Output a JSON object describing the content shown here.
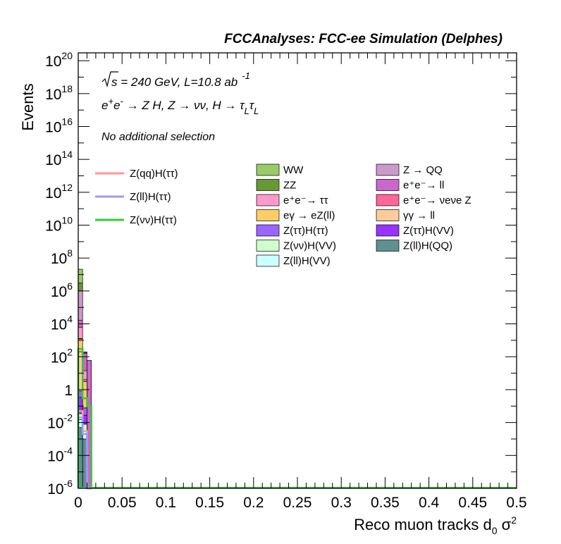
{
  "header": {
    "title": "FCCAnalyses: FCC-ee Simulation (Delphes)"
  },
  "annotations": {
    "energy_line": "√s = 240 GeV, L=10.8 ab⁻¹",
    "energy_pre": "s = 240 GeV, L=10.8 ab",
    "energy_exp": "-1",
    "process_line": "e⁺e⁻ → Z H, Z → νν, H → τLτL",
    "selection_line": "No additional selection"
  },
  "chart_data": {
    "type": "bar",
    "title": "FCCAnalyses: FCC-ee Simulation (Delphes)",
    "xlabel": "Reco muon tracks d0 σ²",
    "ylabel": "Events",
    "xlim": [
      0,
      0.5
    ],
    "ylim": [
      1e-06,
      3e+20
    ],
    "yscale": "log",
    "bin_width": 0.005,
    "x_ticks": [
      "0",
      "0.05",
      "0.1",
      "0.15",
      "0.2",
      "0.25",
      "0.3",
      "0.35",
      "0.4",
      "0.45",
      "0.5"
    ],
    "x_tick_values": [
      0,
      0.05,
      0.1,
      0.15,
      0.2,
      0.25,
      0.3,
      0.35,
      0.4,
      0.45,
      0.5
    ],
    "y_ticks": [
      {
        "value": 1e-06,
        "base": "10",
        "exp": "-6"
      },
      {
        "value": 0.0001,
        "base": "10",
        "exp": "-4"
      },
      {
        "value": 0.01,
        "base": "10",
        "exp": "-2"
      },
      {
        "value": 1,
        "base": "1",
        "exp": ""
      },
      {
        "value": 100.0,
        "base": "10",
        "exp": "2"
      },
      {
        "value": 10000.0,
        "base": "10",
        "exp": "4"
      },
      {
        "value": 1000000.0,
        "base": "10",
        "exp": "6"
      },
      {
        "value": 100000000.0,
        "base": "10",
        "exp": "8"
      },
      {
        "value": 10000000000.0,
        "base": "10",
        "exp": "10"
      },
      {
        "value": 1000000000000.0,
        "base": "10",
        "exp": "12"
      },
      {
        "value": 100000000000000.0,
        "base": "10",
        "exp": "14"
      },
      {
        "value": 1e+16,
        "base": "10",
        "exp": "16"
      },
      {
        "value": 1e+18,
        "base": "10",
        "exp": "18"
      },
      {
        "value": 1e+20,
        "base": "10",
        "exp": "20"
      }
    ],
    "stacked_series": [
      {
        "name": "Z(ll)H(QQ)",
        "color": "#5f9090",
        "values": [
          0.005,
          0.001,
          0
        ]
      },
      {
        "name": "Z(ll)H(VV)",
        "color": "#ccffff",
        "values": [
          0.01,
          0.002,
          0
        ]
      },
      {
        "name": "Z(νν)H(VV)",
        "color": "#ccffcc",
        "values": [
          0.02,
          0.005,
          0
        ]
      },
      {
        "name": "Z(ττ)H(VV)",
        "color": "#9933ff",
        "values": [
          0.3,
          0.02,
          0
        ]
      },
      {
        "name": "Z(ττ)H(ττ)",
        "color": "#9966ff",
        "values": [
          0.5,
          0.05,
          0
        ]
      },
      {
        "name": "γγ → ll",
        "color": "#ffcc99",
        "values": [
          200,
          0,
          0
        ]
      },
      {
        "name": "eγ → eZ(ll)",
        "color": "#ffcc66",
        "values": [
          1000,
          3,
          0
        ]
      },
      {
        "name": "e⁺e⁻ → νeνe Z",
        "color": "#ff6699",
        "values": [
          100,
          1,
          0
        ]
      },
      {
        "name": "e⁺e⁻ → ττ",
        "color": "#ff99cc",
        "values": [
          5000,
          10,
          0
        ]
      },
      {
        "name": "e⁺e⁻ → ll",
        "color": "#cc66cc",
        "values": [
          10000,
          150,
          60
        ]
      },
      {
        "name": "Z → QQ",
        "color": "#cc99cc",
        "values": [
          1000000,
          20,
          0
        ]
      },
      {
        "name": "ZZ",
        "color": "#669933",
        "values": [
          2000000,
          5,
          0
        ]
      },
      {
        "name": "WW",
        "color": "#99cc66",
        "values": [
          18000000,
          5,
          0
        ]
      }
    ],
    "signal_series": [
      {
        "name": "Z(qq)H(ττ)",
        "color": "#ff9999",
        "values": [
          0.05,
          0.003,
          0
        ]
      },
      {
        "name": "Z(ll)H(ττ)",
        "color": "#9999ff",
        "values": [
          0.02,
          0.002,
          0
        ]
      },
      {
        "name": "Z(νν)H(ττ)",
        "color": "#33cc33",
        "values": [
          300,
          0.3,
          0.1
        ]
      }
    ]
  },
  "legend": {
    "signal": [
      {
        "label": "Z(qq)H(ττ)",
        "color": "#ff9999"
      },
      {
        "label": "Z(ll)H(ττ)",
        "color": "#9999ff"
      },
      {
        "label": "Z(νν)H(ττ)",
        "color": "#33cc33"
      }
    ],
    "backgrounds_col1": [
      {
        "label": "WW",
        "color": "#99cc66"
      },
      {
        "label": "ZZ",
        "color": "#669933"
      },
      {
        "label": "e⁺e⁻→ ττ",
        "color": "#ff99cc"
      },
      {
        "label": "eγ → eZ(ll)",
        "color": "#ffcc66"
      },
      {
        "label": "Z(ττ)H(ττ)",
        "color": "#9966ff"
      },
      {
        "label": "Z(νν)H(VV)",
        "color": "#ccffcc"
      },
      {
        "label": "Z(ll)H(VV)",
        "color": "#ccffff"
      }
    ],
    "backgrounds_col2": [
      {
        "label": "Z → QQ",
        "color": "#cc99cc"
      },
      {
        "label": "e⁺e⁻→ ll",
        "color": "#cc66cc"
      },
      {
        "label": "e⁺e⁻→ νeνe Z",
        "color": "#ff6699"
      },
      {
        "label": "γγ → ll",
        "color": "#ffcc99"
      },
      {
        "label": "Z(ττ)H(VV)",
        "color": "#9933ff"
      },
      {
        "label": "Z(ll)H(QQ)",
        "color": "#5f9090"
      }
    ]
  }
}
